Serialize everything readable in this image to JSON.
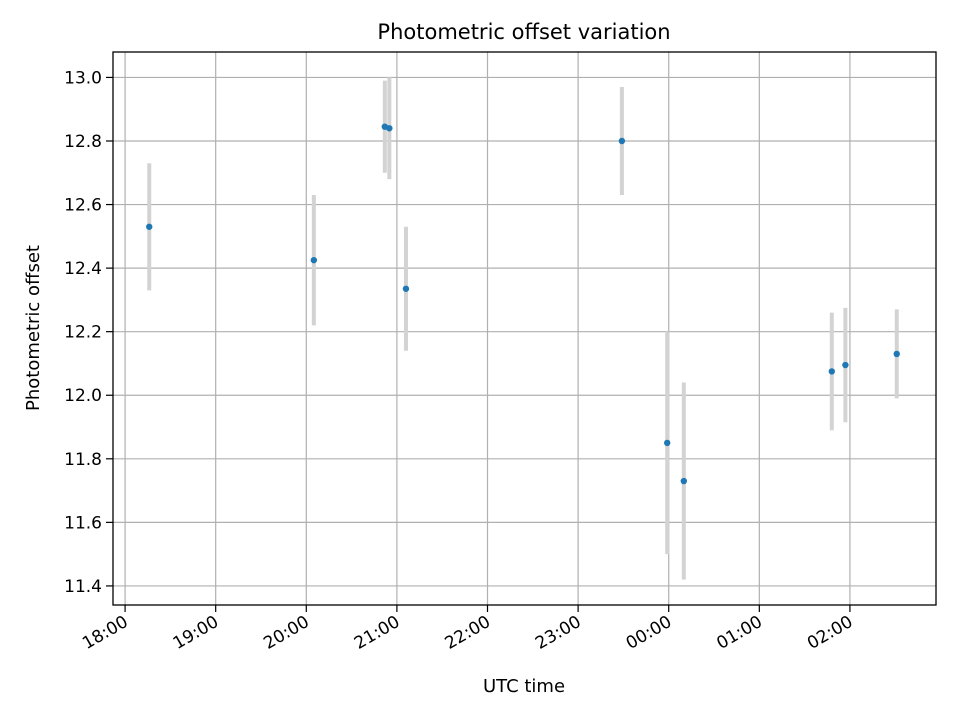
{
  "chart_data": {
    "type": "scatter",
    "title": "Photometric offset variation",
    "xlabel": "UTC time",
    "ylabel": "Photometric offset",
    "grid": true,
    "x_axis_kind": "time",
    "xlim": [
      "17:52",
      "26:57"
    ],
    "ylim": [
      11.34,
      13.08
    ],
    "x_ticks": [
      {
        "t": "18:00",
        "label": "18:00"
      },
      {
        "t": "19:00",
        "label": "19:00"
      },
      {
        "t": "20:00",
        "label": "20:00"
      },
      {
        "t": "21:00",
        "label": "21:00"
      },
      {
        "t": "22:00",
        "label": "22:00"
      },
      {
        "t": "23:00",
        "label": "23:00"
      },
      {
        "t": "24:00",
        "label": "00:00"
      },
      {
        "t": "25:00",
        "label": "01:00"
      },
      {
        "t": "26:00",
        "label": "02:00"
      }
    ],
    "y_ticks": [
      11.4,
      11.6,
      11.8,
      12.0,
      12.2,
      12.4,
      12.6,
      12.8,
      13.0
    ],
    "y_tick_labels": [
      "11.4",
      "11.6",
      "11.8",
      "12.0",
      "12.2",
      "12.4",
      "12.6",
      "12.8",
      "13.0"
    ],
    "points": [
      {
        "t": "18:16",
        "y": 12.53,
        "err": 0.2
      },
      {
        "t": "20:05",
        "y": 12.425,
        "err": 0.205
      },
      {
        "t": "20:52",
        "y": 12.845,
        "err": 0.145
      },
      {
        "t": "20:55",
        "y": 12.84,
        "err": 0.16
      },
      {
        "t": "21:06",
        "y": 12.335,
        "err": 0.195
      },
      {
        "t": "23:29",
        "y": 12.8,
        "err": 0.17
      },
      {
        "t": "23:59",
        "y": 11.85,
        "err": 0.35
      },
      {
        "t": "00:10",
        "y": 11.73,
        "err": 0.31
      },
      {
        "t": "01:48",
        "y": 12.075,
        "err": 0.185
      },
      {
        "t": "01:57",
        "y": 12.095,
        "err": 0.18
      },
      {
        "t": "02:31",
        "y": 12.13,
        "err": 0.14
      }
    ],
    "marker_color": "#1f77b4",
    "errorbar_color": "#d3d3d3",
    "grid_color": "#b0b0b0"
  }
}
